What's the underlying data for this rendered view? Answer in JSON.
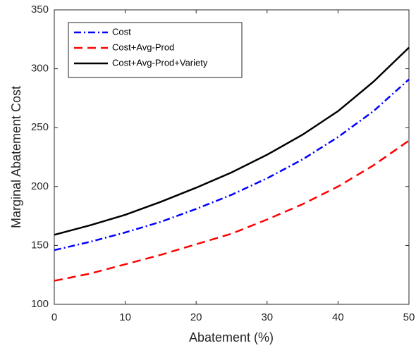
{
  "chart_data": {
    "type": "line",
    "x_label": "Abatement (%)",
    "y_label": "Marginal Abatement Cost",
    "x": [
      0,
      5,
      10,
      15,
      20,
      25,
      30,
      35,
      40,
      45,
      50
    ],
    "series": [
      {
        "name": "Cost",
        "color": "#0000ff",
        "dash": "dashdot",
        "values": [
          146,
          153,
          161,
          170,
          181,
          193,
          207,
          223,
          242,
          264,
          291
        ]
      },
      {
        "name": "Cost+Avg-Prod",
        "color": "#ff0000",
        "dash": "dashed",
        "values": [
          120,
          126,
          134,
          142,
          151,
          160,
          172,
          185,
          200,
          218,
          239
        ]
      },
      {
        "name": "Cost+Avg-Prod+Variety",
        "color": "#000000",
        "dash": "solid",
        "values": [
          159,
          167,
          176,
          187,
          199,
          212,
          227,
          244,
          264,
          289,
          318
        ]
      }
    ],
    "xlim": [
      0,
      50
    ],
    "xticks": [
      0,
      10,
      20,
      30,
      40,
      50
    ],
    "ylim": [
      100,
      350
    ],
    "yticks": [
      100,
      150,
      200,
      250,
      300,
      350
    ],
    "grid": false,
    "legend": "top-left"
  }
}
